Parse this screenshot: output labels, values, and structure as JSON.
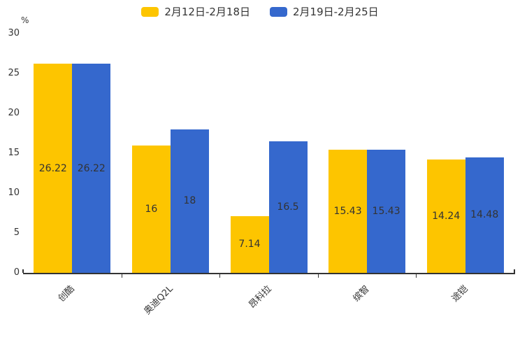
{
  "chart_data": {
    "type": "bar",
    "title": "",
    "unit_label": "%",
    "categories": [
      "创酷",
      "奥迪Q2L",
      "昂科拉",
      "缤智",
      "途铠"
    ],
    "series": [
      {
        "name": "2月12日-2月18日",
        "color": "#FDC500",
        "values": [
          26.22,
          16,
          7.14,
          15.43,
          14.24
        ]
      },
      {
        "name": "2月19日-2月25日",
        "color": "#3568CD",
        "values": [
          26.22,
          18,
          16.5,
          15.43,
          14.48
        ]
      }
    ],
    "ylim": [
      0,
      30
    ],
    "yticks": [
      0,
      5,
      10,
      15,
      20,
      25,
      30
    ],
    "grid": false,
    "legend_position": "top",
    "value_labels": "inside-middle",
    "axis_color": "#333333",
    "label_color": "#333333",
    "background_color": "#ffffff"
  }
}
